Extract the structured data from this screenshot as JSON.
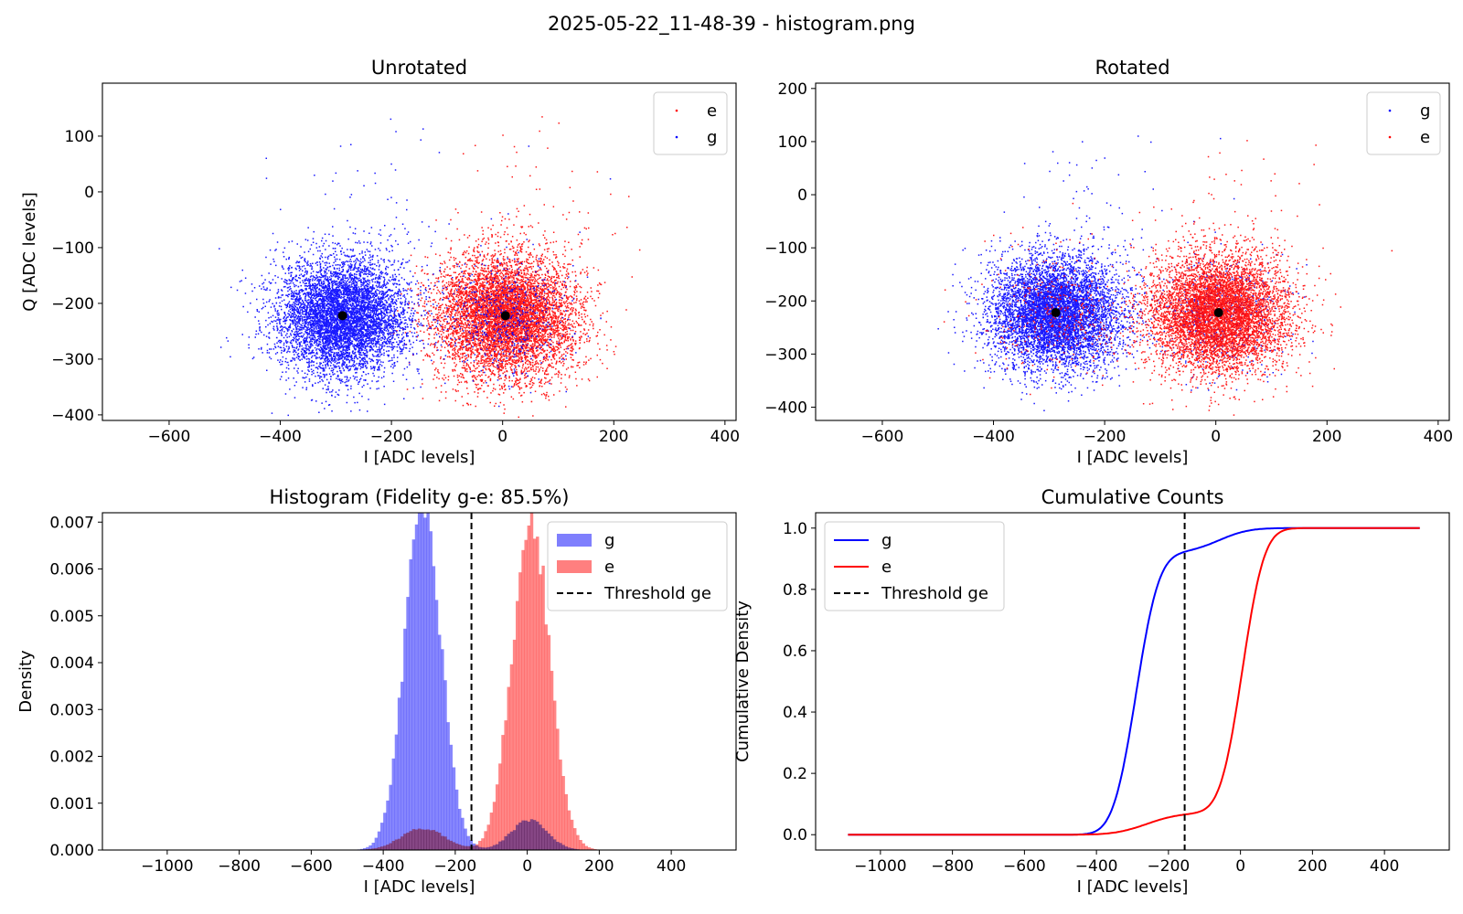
{
  "figure": {
    "suptitle": "2025-05-22_11-48-39 - histogram.png"
  },
  "colors": {
    "g": "#0000ff",
    "e": "#ff0000",
    "g_hist": "#7f7ffd",
    "e_hist": "#ff7f7f",
    "threshold": "#000000",
    "center": "#000000"
  },
  "chart_data": [
    {
      "id": "unrotated",
      "type": "scatter",
      "title": "Unrotated",
      "xlabel": "I [ADC levels]",
      "ylabel": "Q [ADC levels]",
      "xlim": [
        -720,
        420
      ],
      "ylim": [
        -410,
        195
      ],
      "xticks": [
        -600,
        -400,
        -200,
        0,
        200,
        400
      ],
      "yticks": [
        -400,
        -300,
        -200,
        -100,
        0,
        100
      ],
      "legend": {
        "placement": "upper right",
        "entries": [
          "e",
          "g"
        ]
      },
      "series": [
        {
          "name": "e",
          "color": "#ff0000",
          "center": [
            5,
            -222
          ],
          "spread": [
            62,
            55
          ],
          "points": 7000,
          "ghost_centers": [
            [
              -290,
              -222
            ]
          ],
          "ghost_fraction": 0.0
        },
        {
          "name": "g",
          "color": "#0000ff",
          "center": [
            -288,
            -222
          ],
          "spread": [
            58,
            52
          ],
          "points": 7000,
          "ghost_centers": [
            [
              5,
              -222
            ]
          ],
          "ghost_fraction": 0.08
        }
      ],
      "centers": [
        [
          -288,
          -222
        ],
        [
          5,
          -222
        ]
      ]
    },
    {
      "id": "rotated",
      "type": "scatter",
      "title": "Rotated",
      "xlabel": "I [ADC levels]",
      "ylabel": "",
      "xlim": [
        -720,
        420
      ],
      "ylim": [
        -425,
        210
      ],
      "xticks": [
        -600,
        -400,
        -200,
        0,
        200,
        400
      ],
      "yticks": [
        -400,
        -300,
        -200,
        -100,
        0,
        100,
        200
      ],
      "legend": {
        "placement": "upper right",
        "entries": [
          "g",
          "e"
        ]
      },
      "series": [
        {
          "name": "g",
          "color": "#0000ff",
          "center": [
            -288,
            -222
          ],
          "spread": [
            58,
            52
          ],
          "points": 7000,
          "ghost_centers": [
            [
              5,
              -222
            ]
          ],
          "ghost_fraction": 0.08
        },
        {
          "name": "e",
          "color": "#ff0000",
          "center": [
            5,
            -222
          ],
          "spread": [
            62,
            55
          ],
          "points": 7000,
          "ghost_centers": [
            [
              -290,
              -222
            ]
          ],
          "ghost_fraction": 0.05
        }
      ],
      "centers": [
        [
          -288,
          -222
        ],
        [
          5,
          -222
        ]
      ]
    },
    {
      "id": "histogram",
      "type": "bar",
      "title": "Histogram (Fidelity g-e: 85.5%)",
      "xlabel": "I [ADC levels]",
      "ylabel": "Density",
      "xlim": [
        -1180,
        580
      ],
      "ylim": [
        0,
        0.0072
      ],
      "xticks": [
        -1000,
        -800,
        -600,
        -400,
        -200,
        0,
        200,
        400
      ],
      "yticks": [
        0.0,
        0.001,
        0.002,
        0.003,
        0.004,
        0.005,
        0.006,
        0.007
      ],
      "ytick_labels": [
        "0.000",
        "0.001",
        "0.002",
        "0.003",
        "0.004",
        "0.005",
        "0.006",
        "0.007"
      ],
      "threshold": -155,
      "legend": {
        "placement": "upper right",
        "entries": [
          "g",
          "e",
          "Threshold ge"
        ]
      },
      "series": [
        {
          "name": "g",
          "color": "#7f7ffd",
          "components": [
            {
              "mu": -290,
              "sigma": 50,
              "weight": 0.92
            },
            {
              "mu": 5,
              "sigma": 50,
              "weight": 0.08
            }
          ]
        },
        {
          "name": "e",
          "color": "#ff7f7f",
          "components": [
            {
              "mu": 10,
              "sigma": 52,
              "weight": 0.93
            },
            {
              "mu": -290,
              "sigma": 60,
              "weight": 0.07
            }
          ]
        }
      ]
    },
    {
      "id": "cumulative",
      "type": "line",
      "title": "Cumulative Counts",
      "xlabel": "I [ADC levels]",
      "ylabel": "Cumulative Density",
      "xlim": [
        -1180,
        580
      ],
      "ylim": [
        -0.05,
        1.05
      ],
      "xticks": [
        -1000,
        -800,
        -600,
        -400,
        -200,
        0,
        200,
        400
      ],
      "yticks": [
        0.0,
        0.2,
        0.4,
        0.6,
        0.8,
        1.0
      ],
      "ytick_labels": [
        "0.0",
        "0.2",
        "0.4",
        "0.6",
        "0.8",
        "1.0"
      ],
      "threshold": -155,
      "x_range": [
        -1090,
        500
      ],
      "legend": {
        "placement": "upper left",
        "entries": [
          "g",
          "e",
          "Threshold ge"
        ]
      },
      "series": [
        {
          "name": "g",
          "color": "#0000ff",
          "components": [
            {
              "mu": -290,
              "sigma": 50,
              "weight": 0.92
            },
            {
              "mu": -60,
              "sigma": 65,
              "weight": 0.08
            }
          ]
        },
        {
          "name": "e",
          "color": "#ff0000",
          "components": [
            {
              "mu": 5,
              "sigma": 48,
              "weight": 0.93
            },
            {
              "mu": -260,
              "sigma": 70,
              "weight": 0.07
            }
          ]
        }
      ]
    }
  ]
}
